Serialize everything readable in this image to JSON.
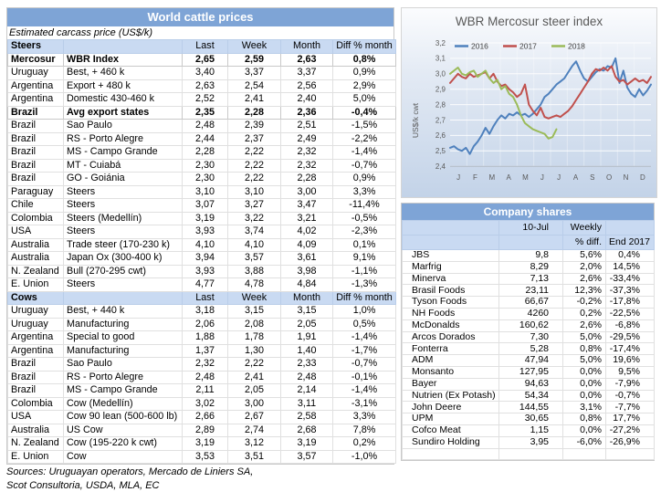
{
  "left_table": {
    "title": "World cattle prices",
    "subtitle": "Estimated carcass price (US$/k)",
    "columns": [
      "Last",
      "Week",
      "Month",
      "Diff % month"
    ],
    "sections": [
      {
        "name": "Steers",
        "rows": [
          {
            "region": "Mercosur",
            "desc": "WBR Index",
            "last": "2,65",
            "week": "2,59",
            "month": "2,63",
            "diff": "0,8%",
            "bold": true
          },
          {
            "region": "Uruguay",
            "desc": "Best, + 460 k",
            "last": "3,40",
            "week": "3,37",
            "month": "3,37",
            "diff": "0,9%"
          },
          {
            "region": "Argentina",
            "desc": "Export + 480 k",
            "last": "2,63",
            "week": "2,54",
            "month": "2,56",
            "diff": "2,9%"
          },
          {
            "region": "Argentina",
            "desc": "Domestic 430-460 k",
            "last": "2,52",
            "week": "2,41",
            "month": "2,40",
            "diff": "5,0%"
          },
          {
            "region": "Brazil",
            "desc": "Avg export states",
            "last": "2,35",
            "week": "2,28",
            "month": "2,36",
            "diff": "-0,4%",
            "bold": true
          },
          {
            "region": "Brazil",
            "desc": "Sao Paulo",
            "last": "2,48",
            "week": "2,39",
            "month": "2,51",
            "diff": "-1,5%"
          },
          {
            "region": "Brazil",
            "desc": "RS - Porto Alegre",
            "last": "2,44",
            "week": "2,37",
            "month": "2,49",
            "diff": "-2,2%"
          },
          {
            "region": "Brazil",
            "desc": "MS - Campo Grande",
            "last": "2,28",
            "week": "2,22",
            "month": "2,32",
            "diff": "-1,4%"
          },
          {
            "region": "Brazil",
            "desc": "MT - Cuiabá",
            "last": "2,30",
            "week": "2,22",
            "month": "2,32",
            "diff": "-0,7%"
          },
          {
            "region": "Brazil",
            "desc": "GO - Goiánia",
            "last": "2,30",
            "week": "2,22",
            "month": "2,28",
            "diff": "0,9%"
          },
          {
            "region": "Paraguay",
            "desc": "Steers",
            "last": "3,10",
            "week": "3,10",
            "month": "3,00",
            "diff": "3,3%"
          },
          {
            "region": "Chile",
            "desc": "Steers",
            "last": "3,07",
            "week": "3,27",
            "month": "3,47",
            "diff": "-11,4%"
          },
          {
            "region": "Colombia",
            "desc": "Steers (Medellín)",
            "last": "3,19",
            "week": "3,22",
            "month": "3,21",
            "diff": "-0,5%"
          },
          {
            "region": "USA",
            "desc": "Steers",
            "last": "3,93",
            "week": "3,74",
            "month": "4,02",
            "diff": "-2,3%"
          },
          {
            "region": "Australia",
            "desc": "Trade steer (170-230 k)",
            "last": "4,10",
            "week": "4,10",
            "month": "4,09",
            "diff": "0,1%"
          },
          {
            "region": "Australia",
            "desc": "Japan Ox (300-400 k)",
            "last": "3,94",
            "week": "3,57",
            "month": "3,61",
            "diff": "9,1%"
          },
          {
            "region": "N. Zealand",
            "desc": "Bull (270-295 cwt)",
            "last": "3,93",
            "week": "3,88",
            "month": "3,98",
            "diff": "-1,1%"
          },
          {
            "region": "E. Union",
            "desc": "Steers",
            "last": "4,77",
            "week": "4,78",
            "month": "4,84",
            "diff": "-1,3%"
          }
        ]
      },
      {
        "name": "Cows",
        "rows": [
          {
            "region": "Uruguay",
            "desc": "Best, + 440 k",
            "last": "3,18",
            "week": "3,15",
            "month": "3,15",
            "diff": "1,0%"
          },
          {
            "region": "Uruguay",
            "desc": "Manufacturing",
            "last": "2,06",
            "week": "2,08",
            "month": "2,05",
            "diff": "0,5%"
          },
          {
            "region": "Argentina",
            "desc": "Special to good",
            "last": "1,88",
            "week": "1,78",
            "month": "1,91",
            "diff": "-1,4%"
          },
          {
            "region": "Argentina",
            "desc": "Manufacturing",
            "last": "1,37",
            "week": "1,30",
            "month": "1,40",
            "diff": "-1,7%"
          },
          {
            "region": "Brazil",
            "desc": "Sao Paulo",
            "last": "2,32",
            "week": "2,22",
            "month": "2,33",
            "diff": "-0,7%"
          },
          {
            "region": "Brazil",
            "desc": "RS - Porto Alegre",
            "last": "2,48",
            "week": "2,41",
            "month": "2,48",
            "diff": "-0,1%"
          },
          {
            "region": "Brazil",
            "desc": "MS - Campo Grande",
            "last": "2,11",
            "week": "2,05",
            "month": "2,14",
            "diff": "-1,4%"
          },
          {
            "region": "Colombia",
            "desc": "Cow (Medellín)",
            "last": "3,02",
            "week": "3,00",
            "month": "3,11",
            "diff": "-3,1%"
          },
          {
            "region": "USA",
            "desc": "Cow 90 lean (500-600 lb)",
            "last": "2,66",
            "week": "2,67",
            "month": "2,58",
            "diff": "3,3%"
          },
          {
            "region": "Australia",
            "desc": "US Cow",
            "last": "2,89",
            "week": "2,74",
            "month": "2,68",
            "diff": "7,8%"
          },
          {
            "region": "N. Zealand",
            "desc": "Cow (195-220 k cwt)",
            "last": "3,19",
            "week": "3,12",
            "month": "3,19",
            "diff": "0,2%"
          },
          {
            "region": "E. Union",
            "desc": "Cow",
            "last": "3,53",
            "week": "3,51",
            "month": "3,57",
            "diff": "-1,0%"
          }
        ]
      }
    ],
    "sources": [
      "Sources: Uruguayan operators, Mercado de Liniers SA,",
      "Scot Consultoria, USDA, MLA, EC"
    ]
  },
  "chart_data": {
    "type": "line",
    "title": "WBR Mercosur steer index",
    "ylabel": "US$/k cwt",
    "ylim": [
      2.4,
      3.2
    ],
    "yticks": [
      "2,4",
      "2,5",
      "2,6",
      "2,7",
      "2,8",
      "2,9",
      "3,0",
      "3,1",
      "3,2"
    ],
    "x_months": [
      "J",
      "F",
      "M",
      "A",
      "M",
      "J",
      "J",
      "A",
      "S",
      "O",
      "N",
      "D"
    ],
    "grid": true,
    "legend_position": "top",
    "series": [
      {
        "name": "2016",
        "color": "#4F81BD",
        "values": [
          2.52,
          2.53,
          2.51,
          2.5,
          2.52,
          2.48,
          2.53,
          2.56,
          2.6,
          2.65,
          2.61,
          2.66,
          2.7,
          2.73,
          2.71,
          2.74,
          2.73,
          2.75,
          2.73,
          2.74,
          2.72,
          2.74,
          2.77,
          2.8,
          2.85,
          2.87,
          2.9,
          2.93,
          2.95,
          2.97,
          3.01,
          3.05,
          3.08,
          3.02,
          2.97,
          2.95,
          2.98,
          3.01,
          3.03,
          3.02,
          3.05,
          3.04,
          3.1,
          2.94,
          3.02,
          2.91,
          2.87,
          2.85,
          2.9,
          2.86,
          2.89,
          2.93
        ]
      },
      {
        "name": "2017",
        "color": "#C0504D",
        "values": [
          2.94,
          2.97,
          3.0,
          2.98,
          2.97,
          3.0,
          2.98,
          2.99,
          3.0,
          3.01,
          2.97,
          3.0,
          2.95,
          2.92,
          2.93,
          2.9,
          2.88,
          2.85,
          2.87,
          2.93,
          2.8,
          2.76,
          2.73,
          2.78,
          2.72,
          2.71,
          2.72,
          2.73,
          2.72,
          2.74,
          2.76,
          2.79,
          2.83,
          2.87,
          2.91,
          2.95,
          3.0,
          3.03,
          3.02,
          3.04,
          3.02,
          3.05,
          2.98,
          2.95,
          2.96,
          2.93,
          2.95,
          2.97,
          2.95,
          2.96,
          2.94,
          2.98
        ]
      },
      {
        "name": "2018",
        "color": "#9BBB59",
        "values": [
          3.0,
          3.02,
          3.04,
          3.0,
          2.99,
          3.01,
          3.02,
          2.98,
          3.0,
          3.02,
          2.97,
          2.94,
          2.96,
          2.9,
          2.92,
          2.87,
          2.85,
          2.8,
          2.73,
          2.68,
          2.66,
          2.64,
          2.63,
          2.62,
          2.61,
          2.58,
          2.59,
          2.64
        ]
      }
    ]
  },
  "company_table": {
    "title": "Company shares",
    "headers": {
      "date": "10-Jul",
      "weekly": "Weekly",
      "pct_diff": "% diff.",
      "end_2017": "End 2017"
    },
    "rows": [
      [
        "JBS",
        "9,8",
        "5,6%",
        "0,4%"
      ],
      [
        "Marfrig",
        "8,29",
        "2,0%",
        "14,5%"
      ],
      [
        "Minerva",
        "7,13",
        "2,6%",
        "-33,4%"
      ],
      [
        "Brasil Foods",
        "23,11",
        "12,3%",
        "-37,3%"
      ],
      [
        "Tyson Foods",
        "66,67",
        "-0,2%",
        "-17,8%"
      ],
      [
        "NH Foods",
        "4260",
        "0,2%",
        "-22,5%"
      ],
      [
        "McDonalds",
        "160,62",
        "2,6%",
        "-6,8%"
      ],
      [
        "Arcos Dorados",
        "7,30",
        "5,0%",
        "-29,5%"
      ],
      [
        "Fonterra",
        "5,28",
        "0,8%",
        "-17,4%"
      ],
      [
        "ADM",
        "47,94",
        "5,0%",
        "19,6%"
      ],
      [
        "Monsanto",
        "127,95",
        "0,0%",
        "9,5%"
      ],
      [
        "Bayer",
        "94,63",
        "0,0%",
        "-7,9%"
      ],
      [
        "Nutrien (Ex Potash)",
        "54,34",
        "0,0%",
        "-0,7%"
      ],
      [
        "John Deere",
        "144,55",
        "3,1%",
        "-7,7%"
      ],
      [
        "UPM",
        "30,65",
        "0,8%",
        "17,7%"
      ],
      [
        "Cofco Meat",
        "1,15",
        "0,0%",
        "-27,2%"
      ],
      [
        "Sundiro Holding",
        "3,95",
        "-6,0%",
        "-26,9%"
      ]
    ]
  },
  "colors": {
    "header_blue": "#7ea4d6",
    "band_blue": "#c9daf2",
    "series_2016": "#4F81BD",
    "series_2017": "#C0504D",
    "series_2018": "#9BBB59"
  }
}
